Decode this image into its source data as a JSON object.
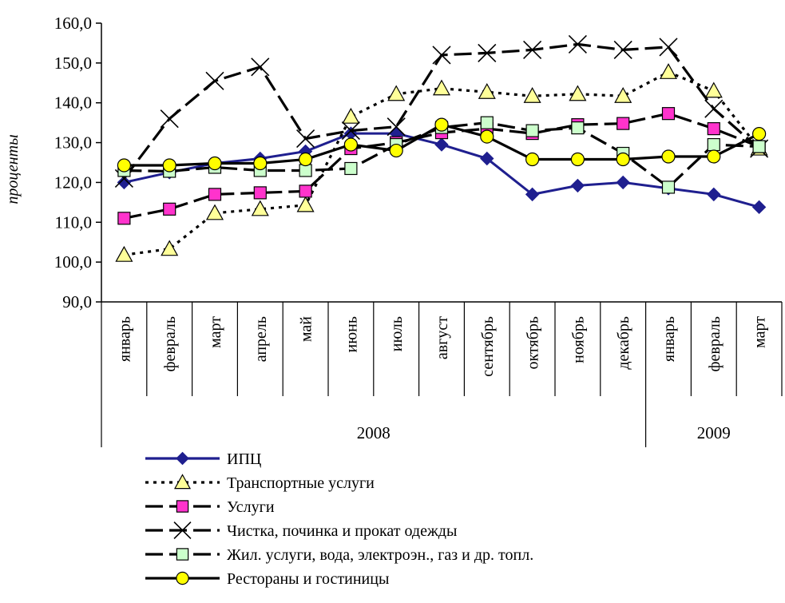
{
  "chart_data": {
    "type": "line",
    "ylabel": "проценты",
    "ylim": [
      90,
      160
    ],
    "yticks": [
      "90,0",
      "100,0",
      "110,0",
      "120,0",
      "130,0",
      "140,0",
      "150,0",
      "160,0"
    ],
    "categories": [
      "январь",
      "февраль",
      "март",
      "апрель",
      "май",
      "июнь",
      "июль",
      "август",
      "сентябрь",
      "октябрь",
      "ноябрь",
      "декабрь",
      "январь",
      "февраль",
      "март"
    ],
    "years": [
      {
        "label": "2008",
        "span": 12
      },
      {
        "label": "2009",
        "span": 3
      }
    ],
    "grid": false,
    "legend_position": "bottom",
    "series": [
      {
        "name": "ИПЦ",
        "color": "#1F1F8F",
        "marker": "diamond",
        "marker_fill": "#1F1F8F",
        "dash": "solid",
        "values": [
          120.0,
          122.5,
          124.8,
          126.0,
          127.8,
          132.3,
          132.3,
          129.5,
          126.0,
          117.0,
          119.2,
          120.0,
          118.5,
          117.0,
          113.8
        ]
      },
      {
        "name": "Транспортные услуги",
        "color": "#000000",
        "marker": "triangle",
        "marker_fill": "#FFFF99",
        "dash": "dotted",
        "values": [
          101.8,
          103.3,
          112.3,
          113.3,
          114.3,
          136.5,
          142.2,
          143.6,
          142.7,
          141.7,
          142.2,
          141.7,
          147.7,
          143.0,
          128.5
        ]
      },
      {
        "name": "Услуги",
        "color": "#000000",
        "marker": "square",
        "marker_fill": "#FF33CC",
        "dash": "longdash",
        "values": [
          111.0,
          113.3,
          117.0,
          117.4,
          117.8,
          128.5,
          130.0,
          132.5,
          133.5,
          132.3,
          134.5,
          134.8,
          137.3,
          133.5,
          129.0
        ]
      },
      {
        "name": "Чистка, починка и прокат одежды",
        "color": "#000000",
        "marker": "cross",
        "marker_fill": "none",
        "dash": "dashdot",
        "values": [
          121.0,
          136.0,
          145.5,
          149.0,
          131.0,
          133.0,
          134.0,
          152.0,
          152.5,
          153.3,
          154.7,
          153.3,
          154.0,
          138.5,
          128.5
        ]
      },
      {
        "name": "Жил. услуги, вода, электроэн., газ и др. топл.",
        "color": "#000000",
        "marker": "square",
        "marker_fill": "#CCFFCC",
        "dash": "longdash",
        "values": [
          123.0,
          122.8,
          123.8,
          123.0,
          123.0,
          123.5,
          129.5,
          133.8,
          135.0,
          133.0,
          133.7,
          127.3,
          118.8,
          129.5,
          129.0
        ]
      },
      {
        "name": "Рестораны и гостиницы",
        "color": "#000000",
        "marker": "circle",
        "marker_fill": "#FFFF00",
        "dash": "solid",
        "values": [
          124.3,
          124.3,
          124.8,
          124.8,
          125.8,
          129.5,
          128.0,
          134.5,
          131.5,
          125.8,
          125.8,
          125.8,
          126.5,
          126.5,
          132.2
        ]
      }
    ]
  }
}
